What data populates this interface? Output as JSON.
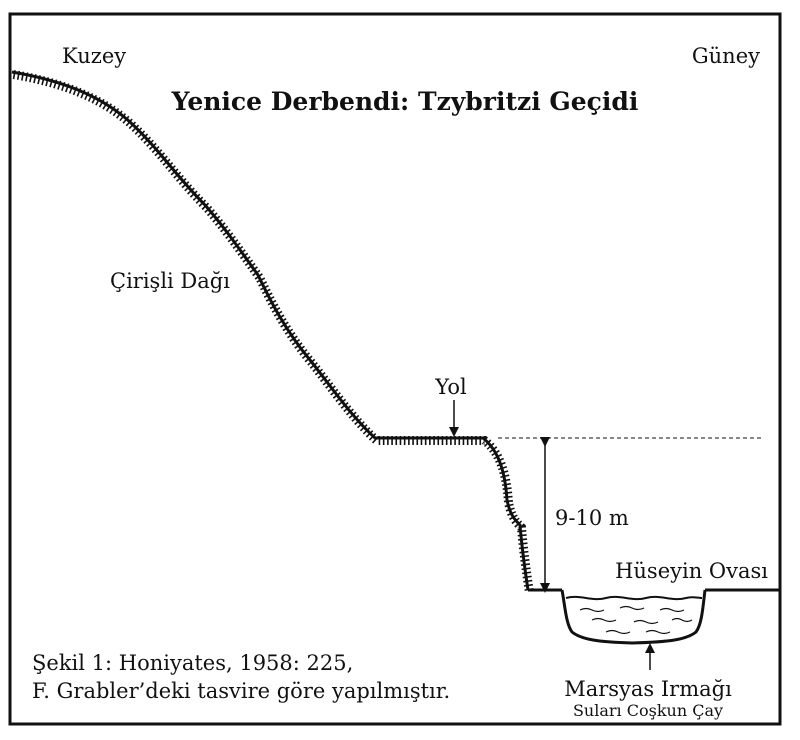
{
  "title": "Yenice Derbendi: Tzybritzi Geçidi",
  "compass": {
    "north": "Kuzey",
    "south": "Güney"
  },
  "labels": {
    "mountain": "Çirişli Dağı",
    "road": "Yol",
    "height": "9-10 m",
    "plain": "Hüseyin Ovası",
    "river": "Marsyas Irmağı",
    "river_sub": "Suları Coşkun Çay"
  },
  "caption": {
    "line1": "Şekil 1: Honiyates,  1958: 225,",
    "line2": "F. Grabler’deki tasvire göre yapılmıştır."
  },
  "colors": {
    "ink": "#111111",
    "background": "#ffffff"
  }
}
